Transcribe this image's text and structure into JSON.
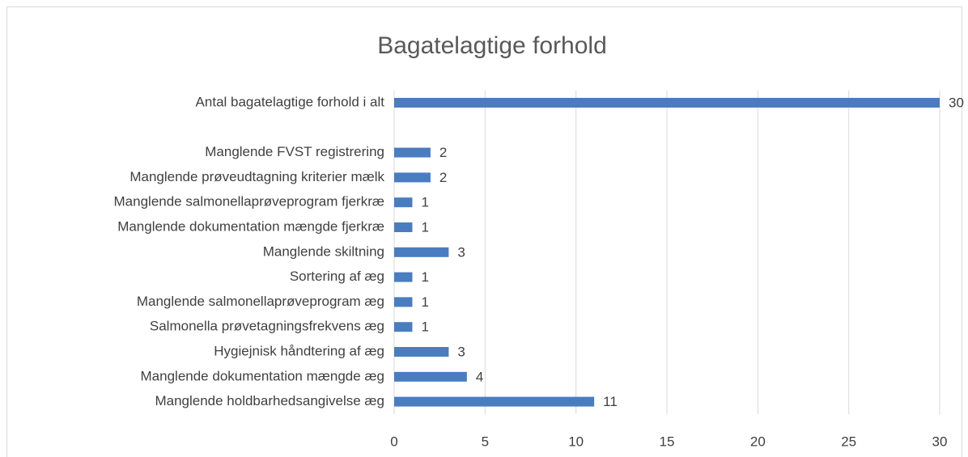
{
  "chart_data": {
    "type": "barh",
    "title": "Bagatelagtige forhold",
    "categories": [
      "Antal bagatelagtige forhold i alt",
      null,
      "Manglende FVST registrering",
      "Manglende prøveudtagning kriterier mælk",
      "Manglende salmonellaprøveprogram fjerkræ",
      "Manglende dokumentation mængde fjerkræ",
      "Manglende skiltning",
      "Sortering af æg",
      "Manglende salmonellaprøveprogram æg",
      "Salmonella prøvetagningsfrekvens æg",
      "Hygiejnisk håndtering af æg",
      "Manglende dokumentation mængde æg",
      "Manglende holdbarhedsangivelse æg"
    ],
    "values": [
      30,
      null,
      2,
      2,
      1,
      1,
      3,
      1,
      1,
      1,
      3,
      4,
      11
    ],
    "color": "#4a7dc0",
    "xlim": [
      0,
      30
    ],
    "xticks": [
      0,
      5,
      10,
      15,
      20,
      25,
      30
    ],
    "grid": true
  }
}
